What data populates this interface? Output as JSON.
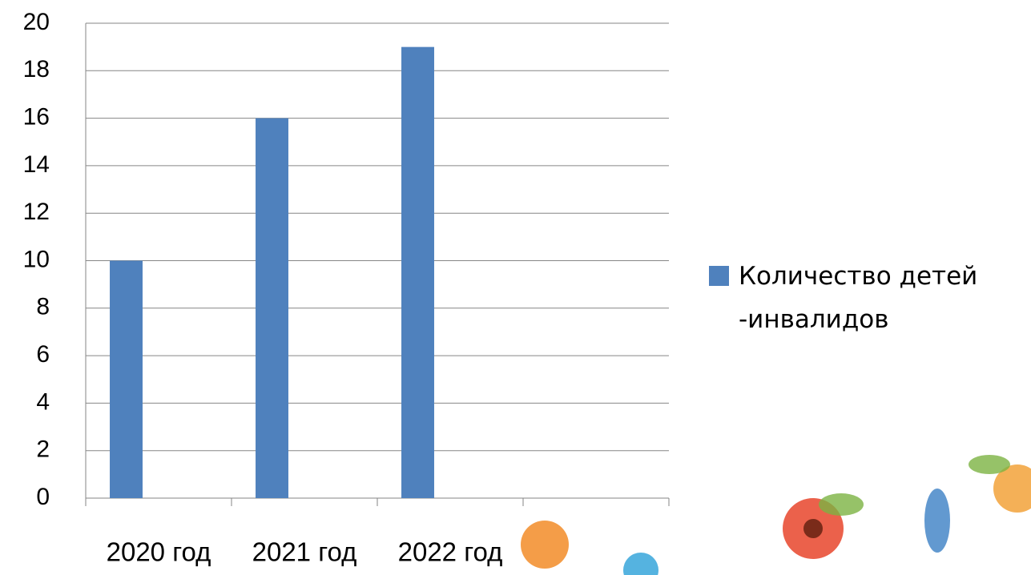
{
  "chart_data": {
    "type": "bar",
    "categories": [
      "2020 год",
      "2021 год",
      "2022 год",
      null
    ],
    "series": [
      {
        "name": "Количество детей -инвалидов",
        "color": "#4f81bd",
        "values": [
          10,
          16,
          19,
          null
        ]
      }
    ],
    "ylim": [
      0,
      20
    ],
    "yticks": [
      0,
      2,
      4,
      6,
      8,
      10,
      12,
      14,
      16,
      18,
      20
    ],
    "grid": true,
    "legend": "right"
  }
}
